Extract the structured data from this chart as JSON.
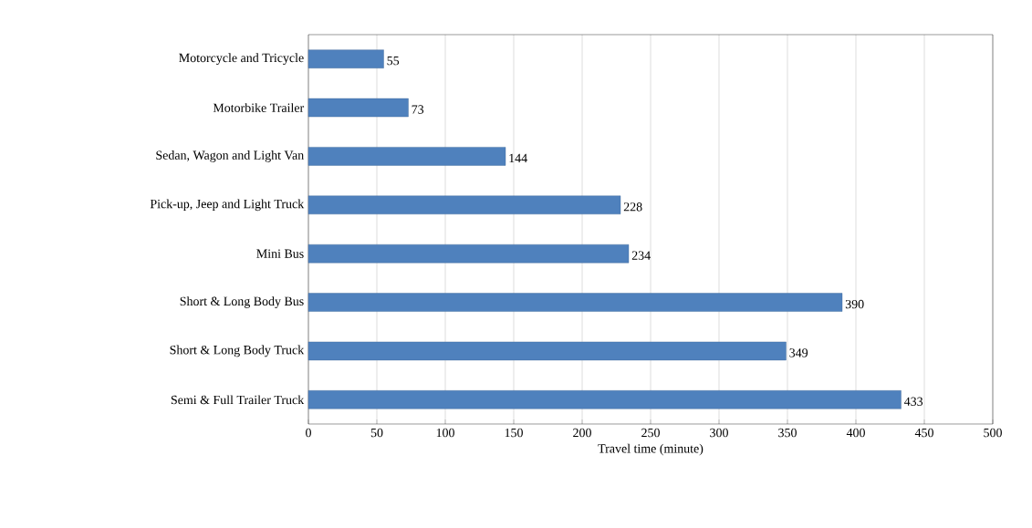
{
  "chart_data": {
    "type": "bar",
    "orientation": "horizontal",
    "xlabel": "Travel time (minute)",
    "categories": [
      "Motorcycle and Tricycle",
      "Motorbike Trailer",
      "Sedan, Wagon and Light Van",
      "Pick-up, Jeep and Light Truck",
      "Mini Bus",
      "Short & Long Body Bus",
      "Short & Long Body Truck",
      "Semi & Full Trailer Truck"
    ],
    "values": [
      55,
      73,
      144,
      228,
      234,
      390,
      349,
      433
    ],
    "color": "#4f81bd",
    "xlim": [
      0,
      500
    ],
    "xticks": [
      0,
      50,
      100,
      150,
      200,
      250,
      300,
      350,
      400,
      450,
      500
    ],
    "grid": "x",
    "data_labels": true
  }
}
